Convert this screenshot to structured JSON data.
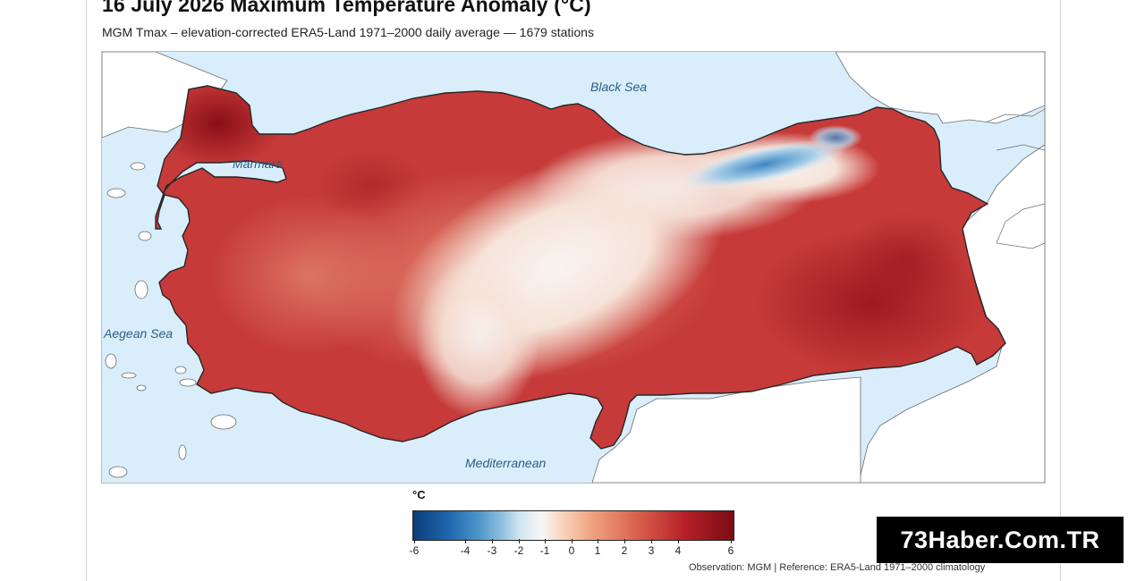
{
  "title": "16 July 2026 Maximum Temperature Anomaly (°C)",
  "subtitle": "MGM Tmax – elevation-corrected ERA5-Land 1971–2000 daily average — 1679 stations",
  "map": {
    "labels": {
      "black_sea": "Black Sea",
      "marmara": "Marmara",
      "aegean": "Aegean Sea",
      "mediterranean": "Mediterranean"
    },
    "colors": {
      "sea": "#d9eefa",
      "land_outside": "#ffffff",
      "hot_strong": "#a3171f",
      "hot": "#c8393a",
      "warm": "#e98a6e",
      "neutral": "#f7efe9",
      "cool": "#9dc6e4",
      "cold": "#4f94c9"
    }
  },
  "colorbar": {
    "unit": "°C",
    "ticks": [
      "-6",
      "-4",
      "-3",
      "-2",
      "-1",
      "0",
      "1",
      "2",
      "3",
      "4",
      "6"
    ]
  },
  "footer": "Observation: MGM   |   Reference: ERA5-Land 1971–2000 climatology",
  "watermark": "73Haber.Com.TR"
}
